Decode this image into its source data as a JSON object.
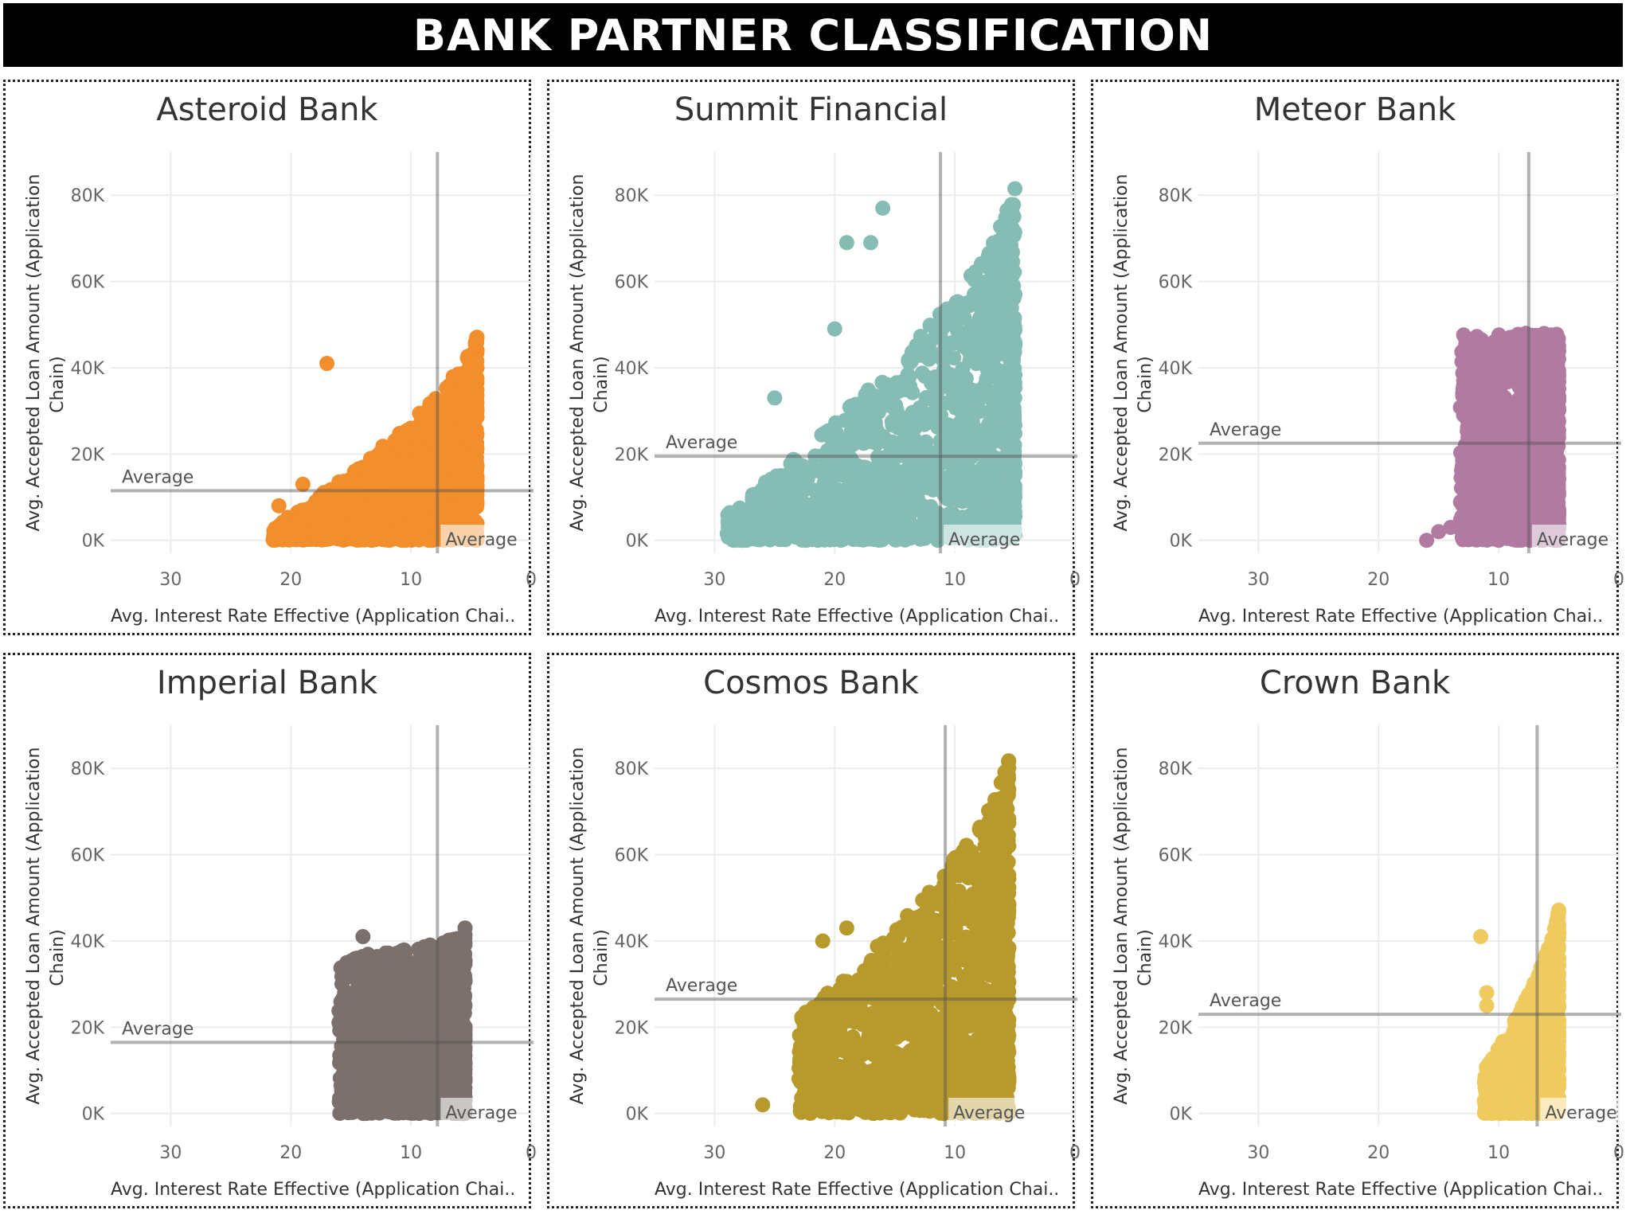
{
  "dashboard": {
    "title": "BANK PARTNER CLASSIFICATION"
  },
  "axis_text": {
    "y_line1": "Avg. Accepted Loan Amount (Application",
    "y_line2": "Chain)",
    "x": "Avg. Interest Rate Effective (Application Chai..",
    "avg": "Average",
    "y_ticks": [
      "0K",
      "20K",
      "40K",
      "60K",
      "80K"
    ],
    "x_ticks": [
      "30",
      "20",
      "10",
      "0"
    ]
  },
  "chart_data": [
    {
      "type": "scatter",
      "title": "Asteroid Bank",
      "color": "#F28E2B",
      "xlabel": "Avg. Interest Rate Effective (Application Chai..",
      "ylabel": "Avg. Accepted Loan Amount (Application Chain)",
      "x_reversed": true,
      "xlim": [
        0,
        35
      ],
      "ylim": [
        -3000,
        90000
      ],
      "avg_x": 7.8,
      "avg_y": 11500,
      "x_range": [
        4.5,
        21.5
      ],
      "y_max_at_low_rate": 48000,
      "y_max_at_high_rate": 3000,
      "outliers": [
        [
          17,
          41000
        ],
        [
          19,
          13000
        ],
        [
          21,
          8000
        ]
      ]
    },
    {
      "type": "scatter",
      "title": "Summit Financial",
      "color": "#85BCB4",
      "xlabel": "Avg. Interest Rate Effective (Application Chai..",
      "ylabel": "Avg. Accepted Loan Amount (Application Chain)",
      "x_reversed": true,
      "xlim": [
        0,
        35
      ],
      "ylim": [
        -3000,
        90000
      ],
      "avg_x": 11.2,
      "avg_y": 19500,
      "x_range": [
        5,
        29
      ],
      "y_max_at_low_rate": 83000,
      "y_max_at_high_rate": 6000,
      "outliers": [
        [
          25,
          33000
        ],
        [
          19,
          69000
        ],
        [
          17,
          69000
        ],
        [
          16,
          77000
        ],
        [
          20,
          49000
        ],
        [
          5,
          81500
        ]
      ]
    },
    {
      "type": "scatter",
      "title": "Meteor Bank",
      "color": "#B07AA1",
      "xlabel": "Avg. Interest Rate Effective (Application Chai..",
      "ylabel": "Avg. Accepted Loan Amount (Application Chain)",
      "x_reversed": true,
      "xlim": [
        0,
        35
      ],
      "ylim": [
        -3000,
        90000
      ],
      "avg_x": 7.5,
      "avg_y": 22500,
      "x_range": [
        5,
        13.2
      ],
      "y_max_at_low_rate": 48000,
      "y_max_at_high_rate": 48000,
      "outliers": [
        [
          16,
          0
        ],
        [
          15,
          2000
        ],
        [
          14,
          3000
        ]
      ]
    },
    {
      "type": "scatter",
      "title": "Imperial Bank",
      "color": "#7B706C",
      "xlabel": "Avg. Interest Rate Effective (Application Chai..",
      "ylabel": "Avg. Accepted Loan Amount (Application Chain)",
      "x_reversed": true,
      "xlim": [
        0,
        35
      ],
      "ylim": [
        -3000,
        90000
      ],
      "avg_x": 7.8,
      "avg_y": 16500,
      "x_range": [
        5.5,
        16
      ],
      "y_max_at_low_rate": 41500,
      "y_max_at_high_rate": 36000,
      "outliers": [
        [
          14,
          41000
        ],
        [
          5.5,
          43000
        ]
      ]
    },
    {
      "type": "scatter",
      "title": "Cosmos Bank",
      "color": "#B79A2B",
      "xlabel": "Avg. Interest Rate Effective (Application Chai..",
      "ylabel": "Avg. Accepted Loan Amount (Application Chain)",
      "x_reversed": true,
      "xlim": [
        0,
        35
      ],
      "ylim": [
        -3000,
        90000
      ],
      "avg_x": 10.8,
      "avg_y": 26500,
      "x_range": [
        5.5,
        23
      ],
      "y_max_at_low_rate": 83000,
      "y_max_at_high_rate": 22000,
      "outliers": [
        [
          26,
          2000
        ],
        [
          21,
          40000
        ],
        [
          19,
          43000
        ]
      ]
    },
    {
      "type": "scatter",
      "title": "Crown Bank",
      "color": "#EFCB5F",
      "xlabel": "Avg. Interest Rate Effective (Application Chai..",
      "ylabel": "Avg. Accepted Loan Amount (Application Chain)",
      "x_reversed": true,
      "xlim": [
        0,
        35
      ],
      "ylim": [
        -3000,
        90000
      ],
      "avg_x": 6.8,
      "avg_y": 23000,
      "x_range": [
        5,
        11.2
      ],
      "y_max_at_low_rate": 48000,
      "y_max_at_high_rate": 10000,
      "outliers": [
        [
          11.5,
          41000
        ],
        [
          11,
          28000
        ],
        [
          11,
          25000
        ]
      ]
    }
  ]
}
